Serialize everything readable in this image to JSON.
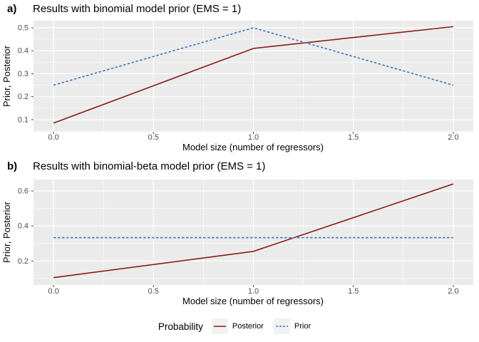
{
  "figure": {
    "ylabel_shared": "Prior, Posterior",
    "xlabel_shared": "Model size (number of regressors)"
  },
  "chart_data": [
    {
      "type": "line",
      "tag": "a)",
      "title": "Results with binomial model prior (EMS = 1)",
      "xlabel": "Model size (number of regressors)",
      "ylabel": "Prior, Posterior",
      "xlim": [
        -0.1,
        2.1
      ],
      "ylim": [
        0.047,
        0.531
      ],
      "grid": "on",
      "panel_bg": "#EBEBEB",
      "grid_major_color": "#FFFFFF",
      "xticks": {
        "values": [
          0,
          0.5,
          1,
          1.5,
          2
        ],
        "labels": [
          "0.0",
          "0.5",
          "1.0",
          "1.5",
          "2.0"
        ],
        "minor": [
          0.25,
          0.75,
          1.25,
          1.75
        ]
      },
      "yticks": {
        "values": [
          0.1,
          0.2,
          0.3,
          0.4,
          0.5
        ],
        "labels": [
          "0.1",
          "0.2",
          "0.3",
          "0.4",
          "0.5"
        ],
        "minor": [
          0.05,
          0.15,
          0.25,
          0.35,
          0.45
        ]
      },
      "x": [
        0,
        1,
        2
      ],
      "series": [
        {
          "name": "Posterior",
          "values": [
            0.085,
            0.41,
            0.505
          ],
          "color": "#8B1A1A",
          "dash": null
        },
        {
          "name": "Prior",
          "values": [
            0.25,
            0.5,
            0.25
          ],
          "color": "#4377B8",
          "dash": "3.5,2.5"
        }
      ]
    },
    {
      "type": "line",
      "tag": "b)",
      "title": "Results with binomial-beta model prior (EMS = 1)",
      "xlabel": "Model size (number of regressors)",
      "ylabel": "Prior, Posterior",
      "xlim": [
        -0.1,
        2.1
      ],
      "ylim": [
        0.063,
        0.665
      ],
      "grid": "on",
      "panel_bg": "#EBEBEB",
      "grid_major_color": "#FFFFFF",
      "xticks": {
        "values": [
          0,
          0.5,
          1,
          1.5,
          2
        ],
        "labels": [
          "0.0",
          "0.5",
          "1.0",
          "1.5",
          "2.0"
        ],
        "minor": [
          0.25,
          0.75,
          1.25,
          1.75
        ]
      },
      "yticks": {
        "values": [
          0.2,
          0.4,
          0.6
        ],
        "labels": [
          "0.2",
          "0.4",
          "0.6"
        ],
        "minor": [
          0.1,
          0.3,
          0.5
        ]
      },
      "x": [
        0,
        1,
        2
      ],
      "series": [
        {
          "name": "Posterior",
          "values": [
            0.105,
            0.255,
            0.64
          ],
          "color": "#8B1A1A",
          "dash": null
        },
        {
          "name": "Prior",
          "values": [
            0.3333,
            0.3333,
            0.3333
          ],
          "color": "#4377B8",
          "dash": "3.5,2.5"
        }
      ]
    }
  ],
  "legend": {
    "title": "Probability",
    "position": "bottom",
    "entries": [
      {
        "label": "Posterior",
        "color": "#8B1A1A",
        "dash": null
      },
      {
        "label": "Prior",
        "color": "#4377B8",
        "dash": "3,2"
      }
    ]
  }
}
